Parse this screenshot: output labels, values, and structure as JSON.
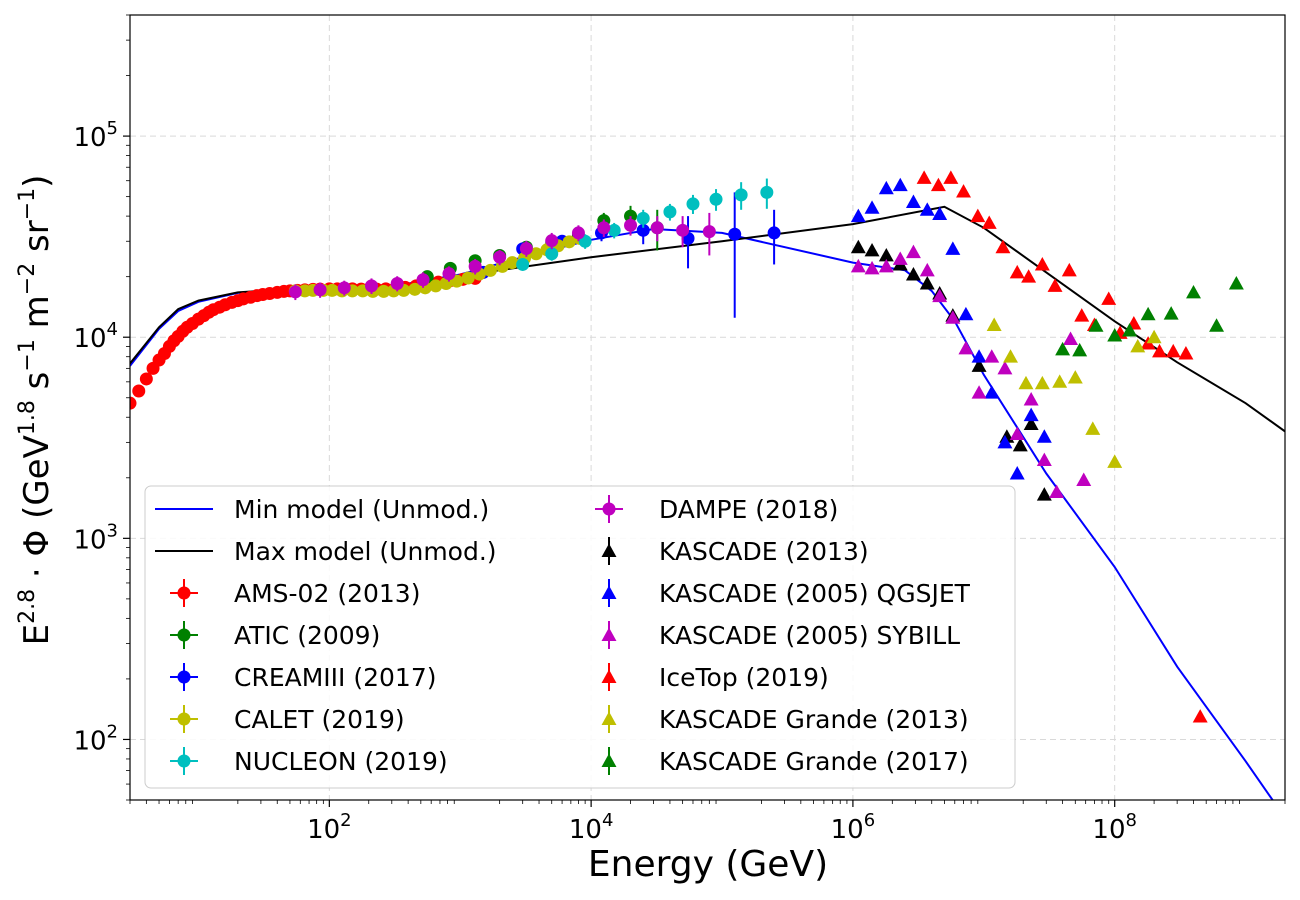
{
  "chart_data": {
    "type": "scatter",
    "xscale": "log",
    "yscale": "log",
    "xlim": [
      3,
      2000000000
    ],
    "ylim": [
      50,
      400000
    ],
    "grid": true,
    "legend_position": "lower-left",
    "legend_columns": 2,
    "xlabel": "Energy (GeV)",
    "ylabel_parts": {
      "pre": "E",
      "sup1": "2.8",
      "mid": " · Φ (GeV",
      "sup2": "1.8",
      "post1": " s",
      "sup3": "−1",
      "post2": " m",
      "sup4": "−2",
      "post3": " sr",
      "sup5": "−1",
      "end": ")"
    },
    "x_ticks": [
      {
        "value": 100,
        "base": "10",
        "exp": "2"
      },
      {
        "value": 10000,
        "base": "10",
        "exp": "4"
      },
      {
        "value": 1000000,
        "base": "10",
        "exp": "6"
      },
      {
        "value": 100000000,
        "base": "10",
        "exp": "8"
      }
    ],
    "y_ticks": [
      {
        "value": 100,
        "base": "10",
        "exp": "2"
      },
      {
        "value": 1000,
        "base": "10",
        "exp": "3"
      },
      {
        "value": 10000,
        "base": "10",
        "exp": "4"
      },
      {
        "value": 100000,
        "base": "10",
        "exp": "5"
      }
    ],
    "lines": [
      {
        "name": "Min model (Unmod.)",
        "color": "#0000ff",
        "points": [
          [
            3,
            7200
          ],
          [
            5,
            11000
          ],
          [
            7,
            13500
          ],
          [
            10,
            15000
          ],
          [
            20,
            16600
          ],
          [
            50,
            17300
          ],
          [
            100,
            17500
          ],
          [
            300,
            17900
          ],
          [
            1000,
            20500
          ],
          [
            3000,
            25000
          ],
          [
            10000,
            30500
          ],
          [
            30000,
            34500
          ],
          [
            100000,
            33000
          ],
          [
            1000000,
            23500
          ],
          [
            2500000,
            21500
          ],
          [
            4000000,
            17000
          ],
          [
            6000000,
            12000
          ],
          [
            10000000,
            6500
          ],
          [
            30000000,
            2100
          ],
          [
            100000000,
            720
          ],
          [
            300000000,
            230
          ],
          [
            1000000000,
            78
          ],
          [
            1800000000,
            45
          ]
        ]
      },
      {
        "name": "Max model (Unmod.)",
        "color": "#000000",
        "points": [
          [
            3,
            7400
          ],
          [
            5,
            11200
          ],
          [
            7,
            13800
          ],
          [
            10,
            15200
          ],
          [
            20,
            16700
          ],
          [
            50,
            17400
          ],
          [
            100,
            17500
          ],
          [
            300,
            17800
          ],
          [
            1000,
            20200
          ],
          [
            10000,
            25000
          ],
          [
            100000,
            30000
          ],
          [
            1000000,
            36500
          ],
          [
            5000000,
            44500
          ],
          [
            10000000,
            35000
          ],
          [
            30000000,
            21000
          ],
          [
            100000000,
            12000
          ],
          [
            300000000,
            7500
          ],
          [
            1000000000,
            4700
          ],
          [
            2000000000,
            3400
          ]
        ]
      }
    ],
    "series": [
      {
        "name": "AMS-02 (2013)",
        "color": "#ff0000",
        "marker": "circle",
        "points": [
          [
            3,
            4700
          ],
          [
            3.5,
            5400
          ],
          [
            4,
            6200
          ],
          [
            4.5,
            7000
          ],
          [
            5,
            7700
          ],
          [
            5.5,
            8300
          ],
          [
            6,
            9000
          ],
          [
            6.5,
            9600
          ],
          [
            7,
            10100
          ],
          [
            7.6,
            10700
          ],
          [
            8.2,
            11200
          ],
          [
            9,
            11700
          ],
          [
            10,
            12300
          ],
          [
            11,
            12800
          ],
          [
            12,
            13300
          ],
          [
            13,
            13700
          ],
          [
            14.5,
            14100
          ],
          [
            16,
            14500
          ],
          [
            18,
            14900
          ],
          [
            20,
            15200
          ],
          [
            22,
            15500
          ],
          [
            25,
            15800
          ],
          [
            28,
            16100
          ],
          [
            31,
            16300
          ],
          [
            35,
            16500
          ],
          [
            40,
            16700
          ],
          [
            45,
            16900
          ],
          [
            50,
            17000
          ],
          [
            57,
            17100
          ],
          [
            65,
            17200
          ],
          [
            75,
            17300
          ],
          [
            85,
            17350
          ],
          [
            100,
            17400
          ],
          [
            115,
            17400
          ],
          [
            130,
            17400
          ],
          [
            150,
            17400
          ],
          [
            175,
            17350
          ],
          [
            200,
            17350
          ],
          [
            230,
            17350
          ],
          [
            270,
            17400
          ],
          [
            320,
            17500
          ],
          [
            380,
            17700
          ],
          [
            460,
            18000
          ],
          [
            560,
            18400
          ],
          [
            680,
            18800
          ],
          [
            840,
            19100
          ],
          [
            1050,
            19400
          ],
          [
            1300,
            19600
          ]
        ]
      },
      {
        "name": "ATIC (2009)",
        "color": "#008000",
        "marker": "circle",
        "points": [
          [
            560,
            20000,
            800
          ],
          [
            840,
            22000,
            900
          ],
          [
            1300,
            24000,
            1000
          ],
          [
            2000,
            25500,
            1200
          ],
          [
            3200,
            28000,
            1800
          ],
          [
            5000,
            29500,
            2000
          ],
          [
            8000,
            32000,
            2500
          ],
          [
            12500,
            38000,
            3500
          ],
          [
            20000,
            40000,
            5000
          ],
          [
            32000,
            35000,
            8000
          ]
        ]
      },
      {
        "name": "CREAMIII (2017)",
        "color": "#0000ff",
        "marker": "circle",
        "points": [
          [
            1500,
            21000,
            1000
          ],
          [
            3000,
            27500,
            1500
          ],
          [
            6000,
            30000,
            2000
          ],
          [
            12000,
            33000,
            3000
          ],
          [
            25000,
            34000,
            5000
          ],
          [
            55000,
            31000,
            9000
          ],
          [
            125000,
            32500,
            20000
          ],
          [
            250000,
            33000,
            10000
          ]
        ]
      },
      {
        "name": "CALET (2019)",
        "color": "#bfbf00",
        "marker": "circle",
        "points": [
          [
            55,
            17000
          ],
          [
            65,
            17000
          ],
          [
            75,
            17100
          ],
          [
            90,
            17100
          ],
          [
            105,
            17100
          ],
          [
            125,
            17000
          ],
          [
            150,
            17000
          ],
          [
            180,
            17000
          ],
          [
            215,
            16900
          ],
          [
            260,
            16900
          ],
          [
            310,
            17000
          ],
          [
            370,
            17100
          ],
          [
            450,
            17300
          ],
          [
            540,
            17600
          ],
          [
            650,
            18000
          ],
          [
            780,
            18500
          ],
          [
            940,
            19000
          ],
          [
            1150,
            19700
          ],
          [
            1400,
            20600
          ],
          [
            1700,
            21500
          ],
          [
            2100,
            22500
          ],
          [
            2500,
            23500
          ],
          [
            3100,
            24700
          ],
          [
            3800,
            26000
          ],
          [
            4600,
            27200
          ],
          [
            5600,
            28500
          ],
          [
            6800,
            29800
          ],
          [
            8200,
            31000
          ]
        ]
      },
      {
        "name": "NUCLEON (2019)",
        "color": "#00bfbf",
        "marker": "circle",
        "points": [
          [
            3000,
            23000,
            1500
          ],
          [
            5000,
            26000,
            2000
          ],
          [
            9000,
            30000,
            2500
          ],
          [
            15000,
            34000,
            3000
          ],
          [
            25000,
            39000,
            4000
          ],
          [
            40000,
            42000,
            4000
          ],
          [
            60000,
            46000,
            5000
          ],
          [
            90000,
            48500,
            6000
          ],
          [
            140000,
            51000,
            8000
          ],
          [
            220000,
            52500,
            9000
          ]
        ]
      },
      {
        "name": "DAMPE (2018)",
        "color": "#bf00bf",
        "marker": "circle",
        "points": [
          [
            55,
            16800,
            1500
          ],
          [
            85,
            17200,
            1500
          ],
          [
            130,
            17600,
            1500
          ],
          [
            210,
            18000,
            1600
          ],
          [
            330,
            18500,
            1600
          ],
          [
            520,
            19300,
            1700
          ],
          [
            820,
            20700,
            1800
          ],
          [
            1300,
            22500,
            2000
          ],
          [
            2000,
            25000,
            2200
          ],
          [
            3200,
            27600,
            2500
          ],
          [
            5000,
            30200,
            2800
          ],
          [
            8000,
            33000,
            3000
          ],
          [
            12500,
            35000,
            3500
          ],
          [
            20000,
            36000,
            4000
          ],
          [
            32000,
            35000,
            5000
          ],
          [
            50000,
            34000,
            6000
          ],
          [
            80000,
            33500,
            8000
          ]
        ]
      },
      {
        "name": "KASCADE (2013)",
        "color": "#000000",
        "marker": "triangle",
        "points": [
          [
            1100000,
            28000
          ],
          [
            1400000,
            27000
          ],
          [
            1800000,
            25500
          ],
          [
            2300000,
            23000
          ],
          [
            2900000,
            20500
          ],
          [
            3700000,
            18500
          ],
          [
            4600000,
            16500
          ],
          [
            5800000,
            12800
          ],
          [
            9200000,
            7200
          ],
          [
            15000000,
            3200
          ],
          [
            19000000,
            2900
          ],
          [
            23000000,
            3700
          ],
          [
            29000000,
            1650
          ]
        ]
      },
      {
        "name": "KASCADE (2005) QGSJET",
        "color": "#0000ff",
        "marker": "triangle",
        "points": [
          [
            1100000,
            40000
          ],
          [
            1400000,
            44000
          ],
          [
            1800000,
            55000
          ],
          [
            2300000,
            57000
          ],
          [
            2900000,
            47000
          ],
          [
            3700000,
            43000
          ],
          [
            4600000,
            41000
          ],
          [
            5800000,
            27500
          ],
          [
            7300000,
            13000
          ],
          [
            9200000,
            8000
          ],
          [
            11500000,
            5300
          ],
          [
            14500000,
            3000
          ],
          [
            18000000,
            2100
          ],
          [
            23000000,
            4100
          ],
          [
            29000000,
            3200
          ]
        ]
      },
      {
        "name": "KASCADE (2005) SYBILL",
        "color": "#bf00bf",
        "marker": "triangle",
        "points": [
          [
            1100000,
            22500
          ],
          [
            1400000,
            22000
          ],
          [
            1800000,
            22500
          ],
          [
            2300000,
            24500
          ],
          [
            2900000,
            26500
          ],
          [
            3700000,
            21500
          ],
          [
            4600000,
            16000
          ],
          [
            5800000,
            12500
          ],
          [
            7300000,
            8800
          ],
          [
            9200000,
            5300
          ],
          [
            11500000,
            8000
          ],
          [
            14500000,
            7000
          ],
          [
            18000000,
            3300
          ],
          [
            23000000,
            4900
          ],
          [
            29000000,
            2450
          ],
          [
            36000000,
            1700
          ],
          [
            46000000,
            9800
          ],
          [
            58000000,
            1950
          ]
        ]
      },
      {
        "name": "IceTop (2019)",
        "color": "#ff0000",
        "marker": "triangle",
        "points": [
          [
            3500000,
            62000
          ],
          [
            4500000,
            57000
          ],
          [
            5600000,
            62000
          ],
          [
            7000000,
            53000
          ],
          [
            9000000,
            40000
          ],
          [
            11000000,
            37000
          ],
          [
            14000000,
            28000
          ],
          [
            18000000,
            21000
          ],
          [
            22000000,
            20000
          ],
          [
            28000000,
            23000
          ],
          [
            35000000,
            18000
          ],
          [
            45000000,
            21500
          ],
          [
            56000000,
            12800
          ],
          [
            70000000,
            11500
          ],
          [
            90000000,
            15500
          ],
          [
            110000000,
            10500
          ],
          [
            140000000,
            11700
          ],
          [
            180000000,
            9300
          ],
          [
            220000000,
            8500
          ],
          [
            280000000,
            8500
          ],
          [
            350000000,
            8300
          ],
          [
            450000000,
            130
          ]
        ]
      },
      {
        "name": "KASCADE Grande (2013)",
        "color": "#bfbf00",
        "marker": "triangle",
        "points": [
          [
            12000000,
            11500
          ],
          [
            16000000,
            8000
          ],
          [
            21000000,
            5900
          ],
          [
            28000000,
            5900
          ],
          [
            38000000,
            6000
          ],
          [
            50000000,
            6300
          ],
          [
            68000000,
            3500
          ],
          [
            100000000,
            2400
          ],
          [
            150000000,
            9000
          ],
          [
            200000000,
            10000
          ]
        ]
      },
      {
        "name": "KASCADE Grande (2017)",
        "color": "#008000",
        "marker": "triangle",
        "points": [
          [
            40000000,
            8700
          ],
          [
            54000000,
            8600
          ],
          [
            72000000,
            11400
          ],
          [
            100000000,
            10200
          ],
          [
            130000000,
            10800
          ],
          [
            180000000,
            13000
          ],
          [
            270000000,
            13100
          ],
          [
            400000000,
            16700
          ],
          [
            600000000,
            11400
          ],
          [
            850000000,
            18500
          ]
        ]
      }
    ]
  }
}
